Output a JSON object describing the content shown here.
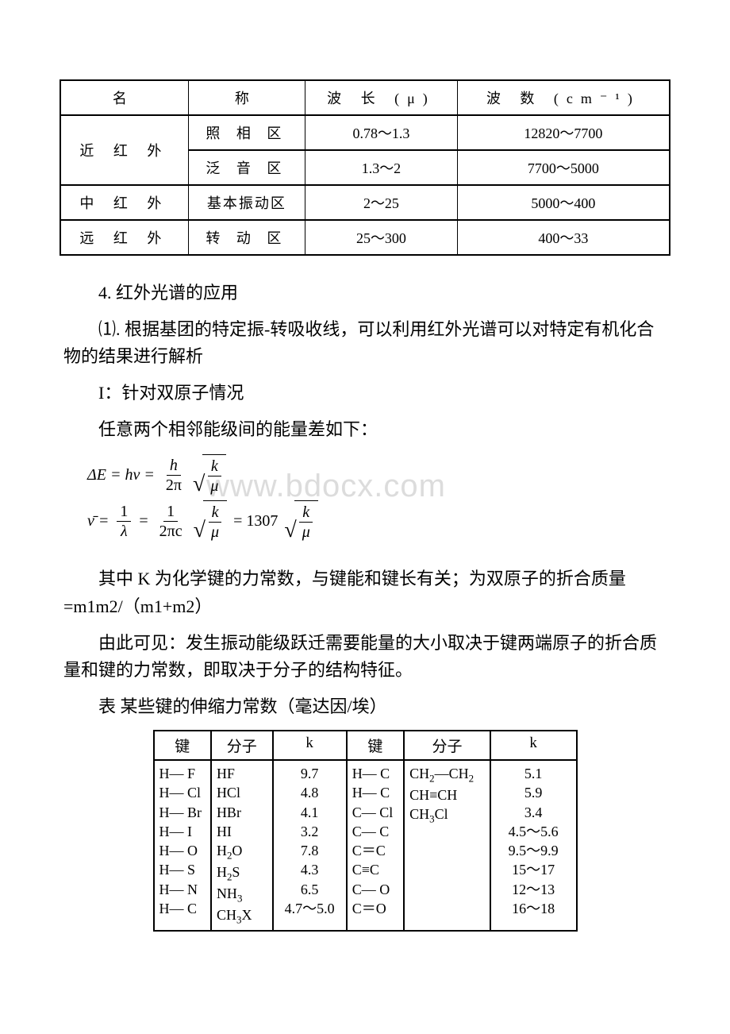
{
  "watermark": "www.bdocx.com",
  "table1": {
    "headers": {
      "name_left": "名",
      "name_right": "称",
      "wavelength": "波   长  (μ)",
      "wavenumber": "波   数 (cm⁻¹)"
    },
    "rows": [
      {
        "region": "近 红 外",
        "sub": "照 相 区",
        "wl": "0.78～1.3",
        "wn": "12820～7700",
        "rowspan": 2
      },
      {
        "region": "",
        "sub": "泛 音 区",
        "wl": "1.3～2",
        "wn": "7700～5000"
      },
      {
        "region": "中 红 外",
        "sub": "基本振动区",
        "wl": "2～25",
        "wn": "5000～400"
      },
      {
        "region": "远 红 外",
        "sub": "转 动 区",
        "wl": "25～300",
        "wn": "400～33"
      }
    ]
  },
  "text": {
    "sec4": "4. 红外光谱的应用",
    "p1": "⑴. 根据基团的特定振-转吸收线，可以利用红外光谱可以对特定有机化合物的结果进行解析",
    "pI": "I：针对双原子情况",
    "p2": "任意两个相邻能级间的能量差如下：",
    "eq1_lhs": "ΔE = hν =",
    "eq1_frac_num": "h",
    "eq1_frac_den": "2π",
    "eq1_sqrt_num": "k",
    "eq1_sqrt_den": "μ",
    "eq2_lhs_nu": "ν̄ =",
    "eq2_f1_num": "1",
    "eq2_f1_den": "λ",
    "eq2_eq": "=",
    "eq2_f2_num": "1",
    "eq2_f2_den": "2πc",
    "eq2_const": "= 1307",
    "p3": "其中 K 为化学键的力常数，与键能和键长有关；为双原子的折合质量 =m1m2/（m1+m2）",
    "p4": "由此可见：发生振动能级跃迁需要能量的大小取决于键两端原子的折合质量和键的力常数，即取决于分子的结构特征。",
    "t2_caption": "表 某些键的伸缩力常数（毫达因/埃）"
  },
  "table2": {
    "headers": {
      "bond": "键",
      "mol": "分子",
      "k": "k"
    },
    "left": {
      "bonds": [
        "H— F",
        "H— Cl",
        "H— Br",
        "H— I",
        "H— O",
        "H— S",
        "H— N",
        "H— C"
      ],
      "mols": [
        "HF",
        "HCl",
        "HBr",
        "HI",
        "H₂O",
        "H₂S",
        "NH₃",
        "CH₃X"
      ],
      "ks": [
        "9.7",
        "4.8",
        "4.1",
        "3.2",
        "7.8",
        "4.3",
        "6.5",
        "4.7～5.0"
      ]
    },
    "right": {
      "bonds": [
        "H— C",
        "H— C",
        "C— Cl",
        "C— C",
        "C＝C",
        "C≡C",
        "C— O",
        "C＝O"
      ],
      "mols": [
        "CH₂—CH₂",
        "CH≡CH",
        "CH₃Cl",
        "",
        "",
        "",
        "",
        ""
      ],
      "ks": [
        "5.1",
        "5.9",
        "3.4",
        "4.5～5.6",
        "9.5～9.9",
        "15～17",
        "12～13",
        "16～18"
      ]
    }
  }
}
